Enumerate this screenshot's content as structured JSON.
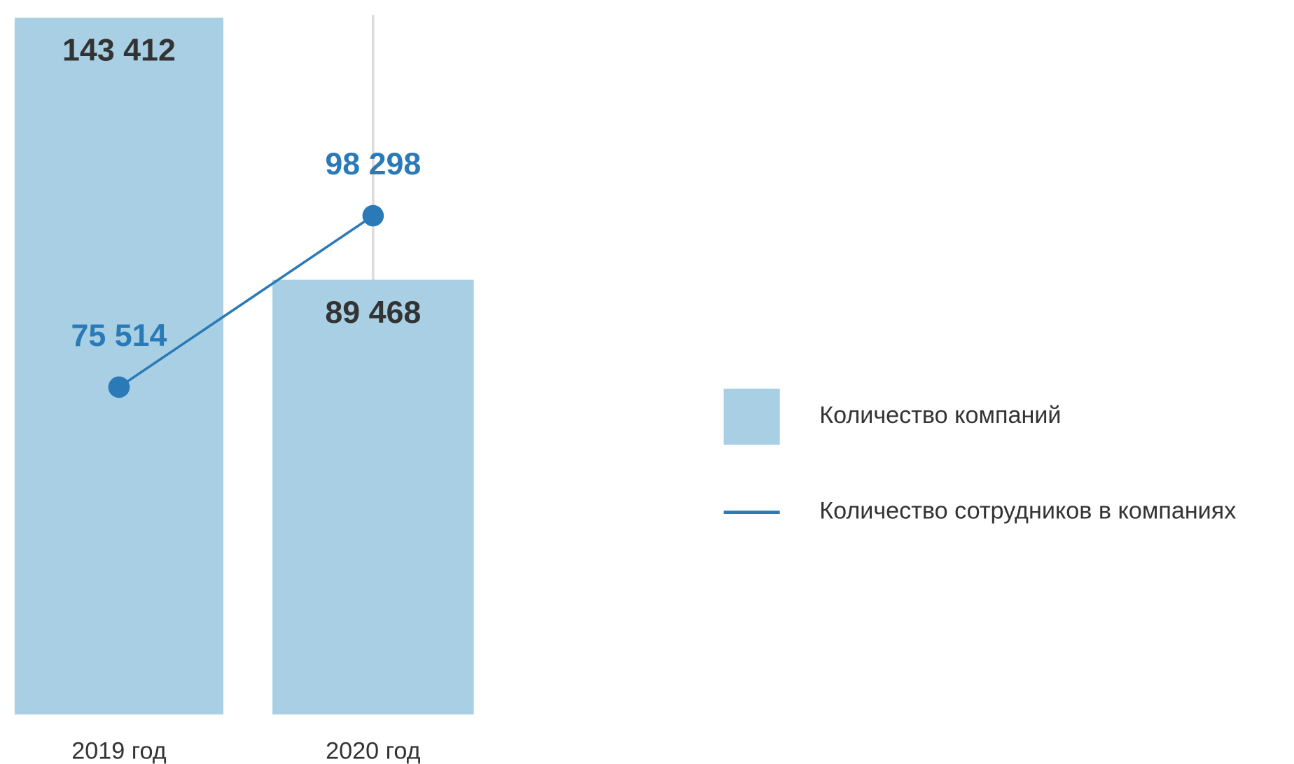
{
  "chart_data": {
    "type": "bar_line",
    "categories": [
      "2019 год",
      "2020 год"
    ],
    "series": [
      {
        "name": "Количество компаний",
        "type": "bar",
        "color": "#a8cfe3",
        "values": [
          143412,
          89468
        ],
        "value_labels": [
          "143 412",
          "89 468"
        ]
      },
      {
        "name": "Количество сотрудников в компаниях",
        "type": "line",
        "axis": "y2",
        "color": "#2a7ab8",
        "values": [
          75514,
          98298
        ],
        "value_labels": [
          "75 514",
          "98 298"
        ]
      }
    ],
    "ylim": [
      0,
      144000
    ],
    "y2lim": [
      32000,
      125000
    ]
  }
}
